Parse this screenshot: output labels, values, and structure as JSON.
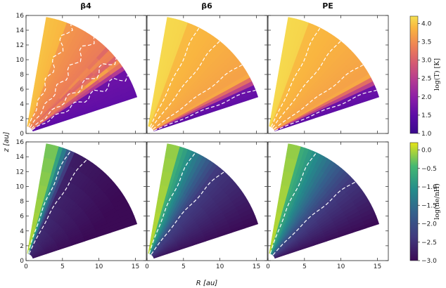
{
  "chart_data": {
    "type": "heatmap",
    "panel_titles": [
      "β4",
      "β6",
      "PE"
    ],
    "xlabel": "R [au]",
    "ylabel": "z [au]",
    "xlim": [
      0,
      16.5
    ],
    "ylim": [
      0,
      16
    ],
    "xticks": [
      0,
      5,
      10,
      15
    ],
    "xtick_labels": [
      "0",
      "5",
      "10",
      "15"
    ],
    "yticks": [
      0,
      2,
      4,
      6,
      8,
      10,
      12,
      14,
      16
    ],
    "ytick_labels": [
      "0",
      "2",
      "4",
      "6",
      "8",
      "10",
      "12",
      "14",
      "16"
    ],
    "rows": [
      {
        "quantity": "log(T) [K]",
        "colorbar_label": "log(T) [K]",
        "colorbar_range": [
          1.0,
          4.2
        ],
        "colorbar_ticks": [
          1.0,
          1.5,
          2.0,
          2.5,
          3.0,
          3.5,
          4.0
        ],
        "colorbar_tick_labels": [
          "1.0",
          "1.5",
          "2.0",
          "2.5",
          "3.0",
          "3.5",
          "4.0"
        ]
      },
      {
        "quantity": "log(n_e/n_H)",
        "colorbar_label": "log(ne/nH)",
        "colorbar_range": [
          -3.0,
          0.2
        ],
        "colorbar_ticks": [
          0.0,
          -0.5,
          -1.0,
          -1.5,
          -2.0,
          -2.5,
          -3.0
        ],
        "colorbar_tick_labels": [
          "0.0",
          "−0.5",
          "−1.0",
          "−1.5",
          "−2.0",
          "−2.5",
          "−3.0"
        ]
      }
    ],
    "domain": {
      "outer_radius_au": 16,
      "inner_edge_angle_deg": 80,
      "midplane_cutoff_angle_deg": 18,
      "inner_radius_au": 1
    },
    "contours": {
      "row1": [
        [
          {
            "angle": 68,
            "value": 3.8
          },
          {
            "angle": 55,
            "value": 3.6
          },
          {
            "angle": 40,
            "value": 3.2
          },
          {
            "angle": 30,
            "value": 2.4
          }
        ],
        [
          {
            "angle": 64,
            "value": 3.6
          },
          {
            "angle": 52,
            "value": 3.5
          },
          {
            "angle": 36,
            "value": 3.5
          },
          {
            "angle": 22,
            "value": 2.2
          }
        ],
        [
          {
            "angle": 64,
            "value": 3.6
          },
          {
            "angle": 52,
            "value": 3.5
          },
          {
            "angle": 36,
            "value": 3.5
          },
          {
            "angle": 22,
            "value": 2.2
          }
        ]
      ],
      "row2": [
        [
          {
            "angle": 74,
            "value": -0.2
          },
          {
            "angle": 65,
            "value": -1.0
          }
        ],
        [
          {
            "angle": 72,
            "value": -0.3
          },
          {
            "angle": 55,
            "value": -1.2
          }
        ],
        [
          {
            "angle": 72,
            "value": -0.3
          },
          {
            "angle": 48,
            "value": -1.0
          }
        ]
      ]
    }
  }
}
